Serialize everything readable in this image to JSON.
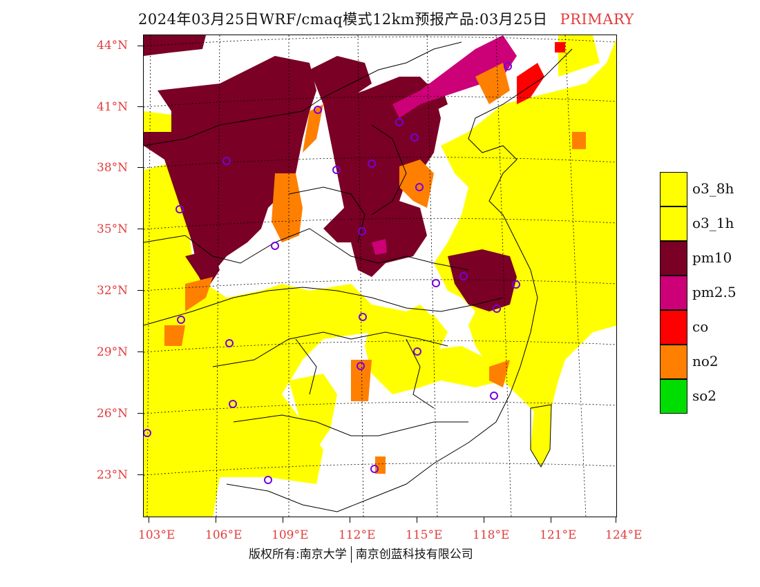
{
  "title": {
    "text": "2024年03月25日WRF/cmaq模式12km预报产品:03月25日",
    "tag": "PRIMARY"
  },
  "axes": {
    "lat_labels": [
      "44°N",
      "41°N",
      "38°N",
      "35°N",
      "32°N",
      "29°N",
      "26°N",
      "23°N"
    ],
    "lon_labels": [
      "103°E",
      "106°E",
      "109°E",
      "112°E",
      "115°E",
      "118°E",
      "121°E",
      "124°E"
    ],
    "label_color": "#e23b3b"
  },
  "legend": [
    {
      "label": "o3_8h",
      "color": "#ffff00"
    },
    {
      "label": "o3_1h",
      "color": "#ffff00"
    },
    {
      "label": "pm10",
      "color": "#7a0025"
    },
    {
      "label": "pm2.5",
      "color": "#cc0077"
    },
    {
      "label": "co",
      "color": "#ff0000"
    },
    {
      "label": "no2",
      "color": "#ff7f00"
    },
    {
      "label": "so2",
      "color": "#00dd00"
    }
  ],
  "copyright": {
    "left": "版权所有:南京大学",
    "right": "南京创蓝科技有限公司"
  }
}
